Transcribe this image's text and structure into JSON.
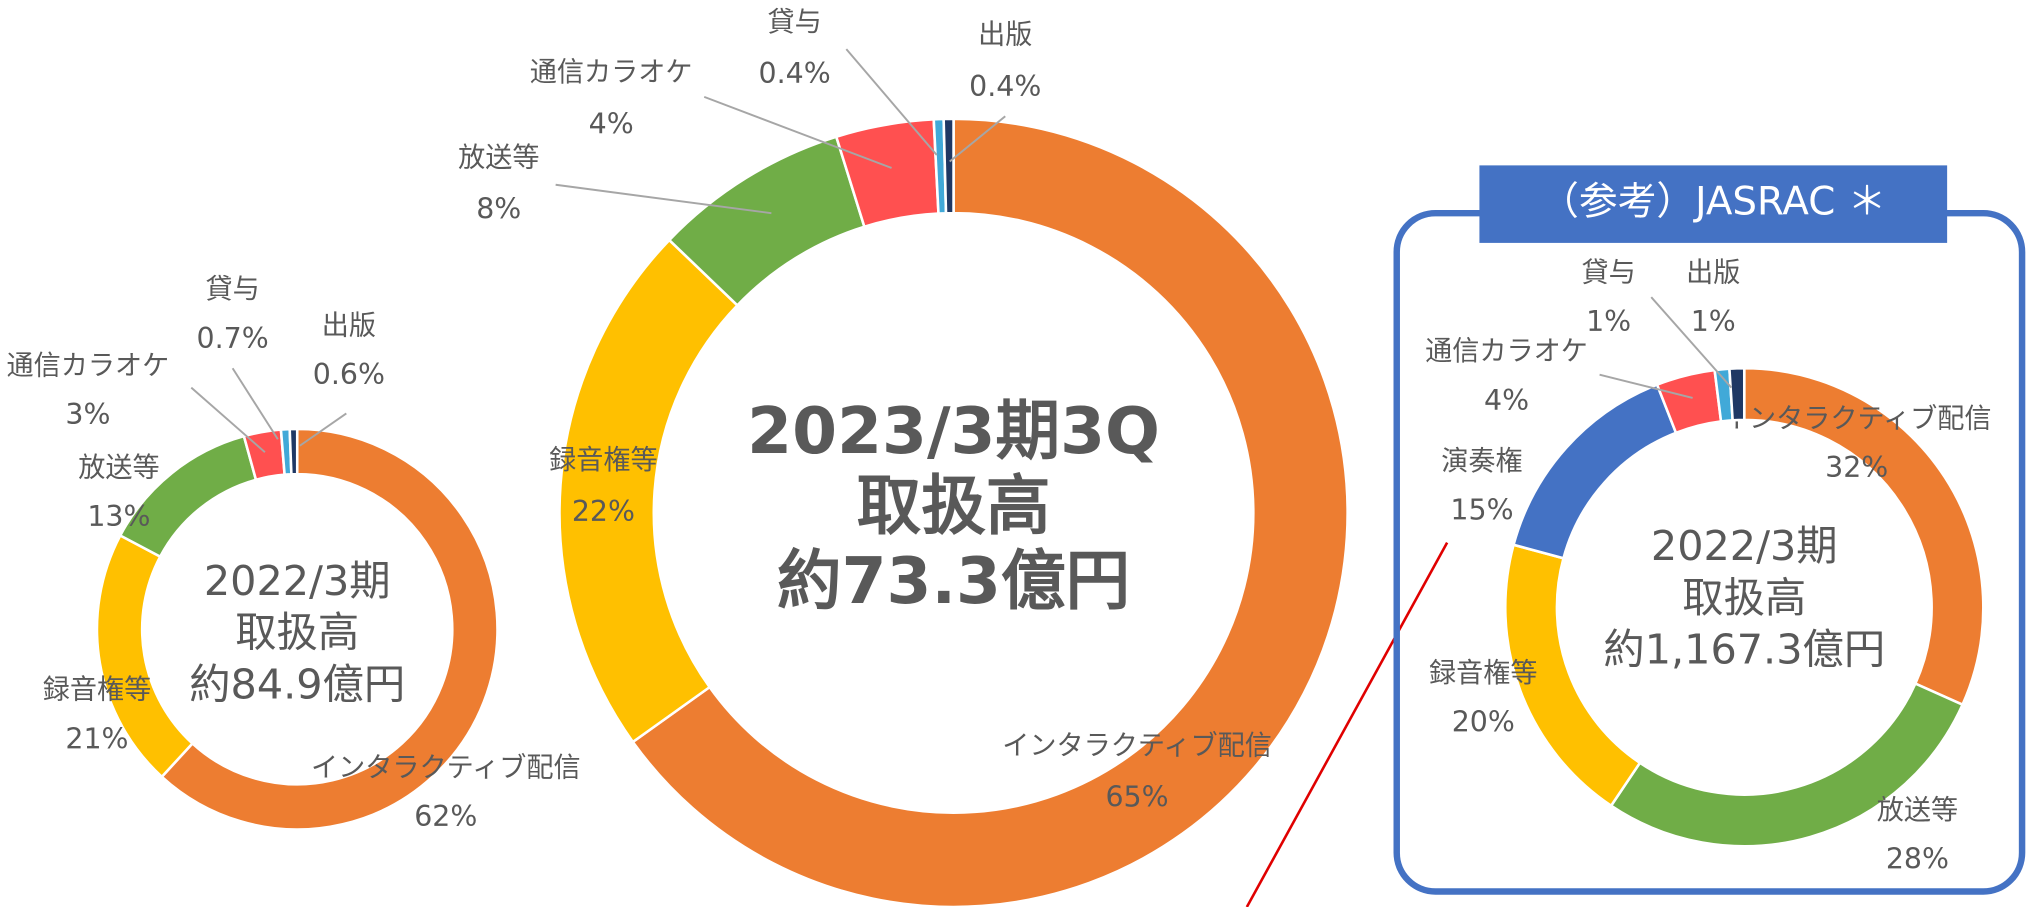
{
  "chart_data": [
    {
      "type": "pie",
      "center_text": [
        "2022/3期",
        "取扱高",
        "約84.9億円"
      ],
      "categories": [
        "インタラクティブ配信",
        "録音権等",
        "放送等",
        "通信カラオケ",
        "貸与",
        "出版"
      ],
      "values": [
        62,
        21,
        13,
        3,
        0.7,
        0.6
      ],
      "value_labels": [
        "62%",
        "21%",
        "13%",
        "3%",
        "0.7%",
        "0.6%"
      ],
      "colors": [
        "#ed7d31",
        "#ffc000",
        "#70ad47",
        "#ff5050",
        "#41a9d8",
        "#1f3864"
      ]
    },
    {
      "type": "pie",
      "center_text": [
        "2023/3期3Q",
        "取扱高",
        "約73.3億円"
      ],
      "categories": [
        "インタラクティブ配信",
        "録音権等",
        "放送等",
        "通信カラオケ",
        "貸与",
        "出版"
      ],
      "values": [
        65,
        22,
        8,
        4,
        0.4,
        0.4
      ],
      "value_labels": [
        "65%",
        "22%",
        "8%",
        "4%",
        "0.4%",
        "0.4%"
      ],
      "colors": [
        "#ed7d31",
        "#ffc000",
        "#70ad47",
        "#ff5050",
        "#41a9d8",
        "#1f3864"
      ]
    },
    {
      "type": "pie",
      "title": "（参考）JASRAC ＊",
      "center_text": [
        "2022/3期",
        "取扱高",
        "約1,167.3億円"
      ],
      "categories": [
        "インタラクティブ配信",
        "放送等",
        "録音権等",
        "演奏権",
        "通信カラオケ",
        "貸与",
        "出版"
      ],
      "values": [
        32,
        28,
        20,
        15,
        4,
        1,
        1
      ],
      "value_labels": [
        "32%",
        "28%",
        "20%",
        "15%",
        "4%",
        "1%",
        "1%"
      ],
      "colors": [
        "#ed7d31",
        "#70ad47",
        "#ffc000",
        "#4472c4",
        "#ff5050",
        "#41a9d8",
        "#1f3864"
      ]
    }
  ]
}
